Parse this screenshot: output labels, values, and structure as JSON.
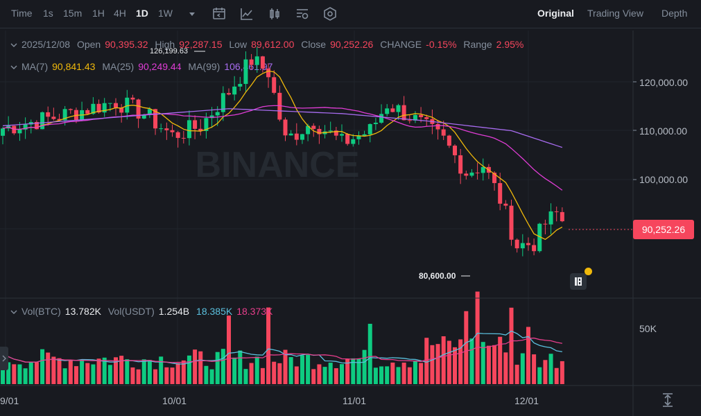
{
  "toolbar": {
    "items": [
      {
        "label": "Time"
      },
      {
        "label": "1s"
      },
      {
        "label": "15m"
      },
      {
        "label": "1H"
      },
      {
        "label": "4H"
      },
      {
        "label": "1D"
      },
      {
        "label": "1W"
      }
    ],
    "active_interval": "1D",
    "right_tabs": [
      {
        "label": "Original"
      },
      {
        "label": "Trading View"
      },
      {
        "label": "Depth"
      }
    ],
    "active_view": "Original",
    "icons": [
      "dropdown-caret-icon",
      "calendar-icon",
      "chart-indicator-icon",
      "candle-type-icon",
      "settings-list-icon",
      "hexagon-settings-icon"
    ]
  },
  "ohlc": {
    "date": "2025/12/08",
    "open_label": "Open",
    "open": "90,395.32",
    "high_label": "High",
    "high": "92,287.15",
    "low_label": "Low",
    "low": "89,612.00",
    "close_label": "Close",
    "close": "90,252.26",
    "change_label": "CHANGE",
    "change": "-0.15%",
    "range_label": "Range",
    "range": "2.95%"
  },
  "ma": {
    "ma7_label": "MA(7)",
    "ma7": "90,841.43",
    "ma25_label": "MA(25)",
    "ma25": "90,249.44",
    "ma99_label": "MA(99)",
    "ma99": "106,461.97"
  },
  "annotations": {
    "high": "126,199.63",
    "low": "80,600.00"
  },
  "price_axis": [
    "120,000.00",
    "110,000.00",
    "100,000.00"
  ],
  "current_price": "90,252.26",
  "volume": {
    "btc_label": "Vol(BTC)",
    "btc": "13.782K",
    "usdt_label": "Vol(USDT)",
    "usdt": "1.254B",
    "ma1": "18.385K",
    "ma2": "18.373K",
    "axis": "50K"
  },
  "date_axis": [
    "9/01",
    "10/01",
    "11/01",
    "12/01"
  ],
  "watermark": "BINANCE",
  "colors": {
    "bg": "#181a20",
    "up": "#0ecb81",
    "down": "#f6465d",
    "ma7": "#f0b90b",
    "ma25": "#e13dd6",
    "ma99": "#a86cf0",
    "vol_ma1": "#5bc0de"
  }
}
